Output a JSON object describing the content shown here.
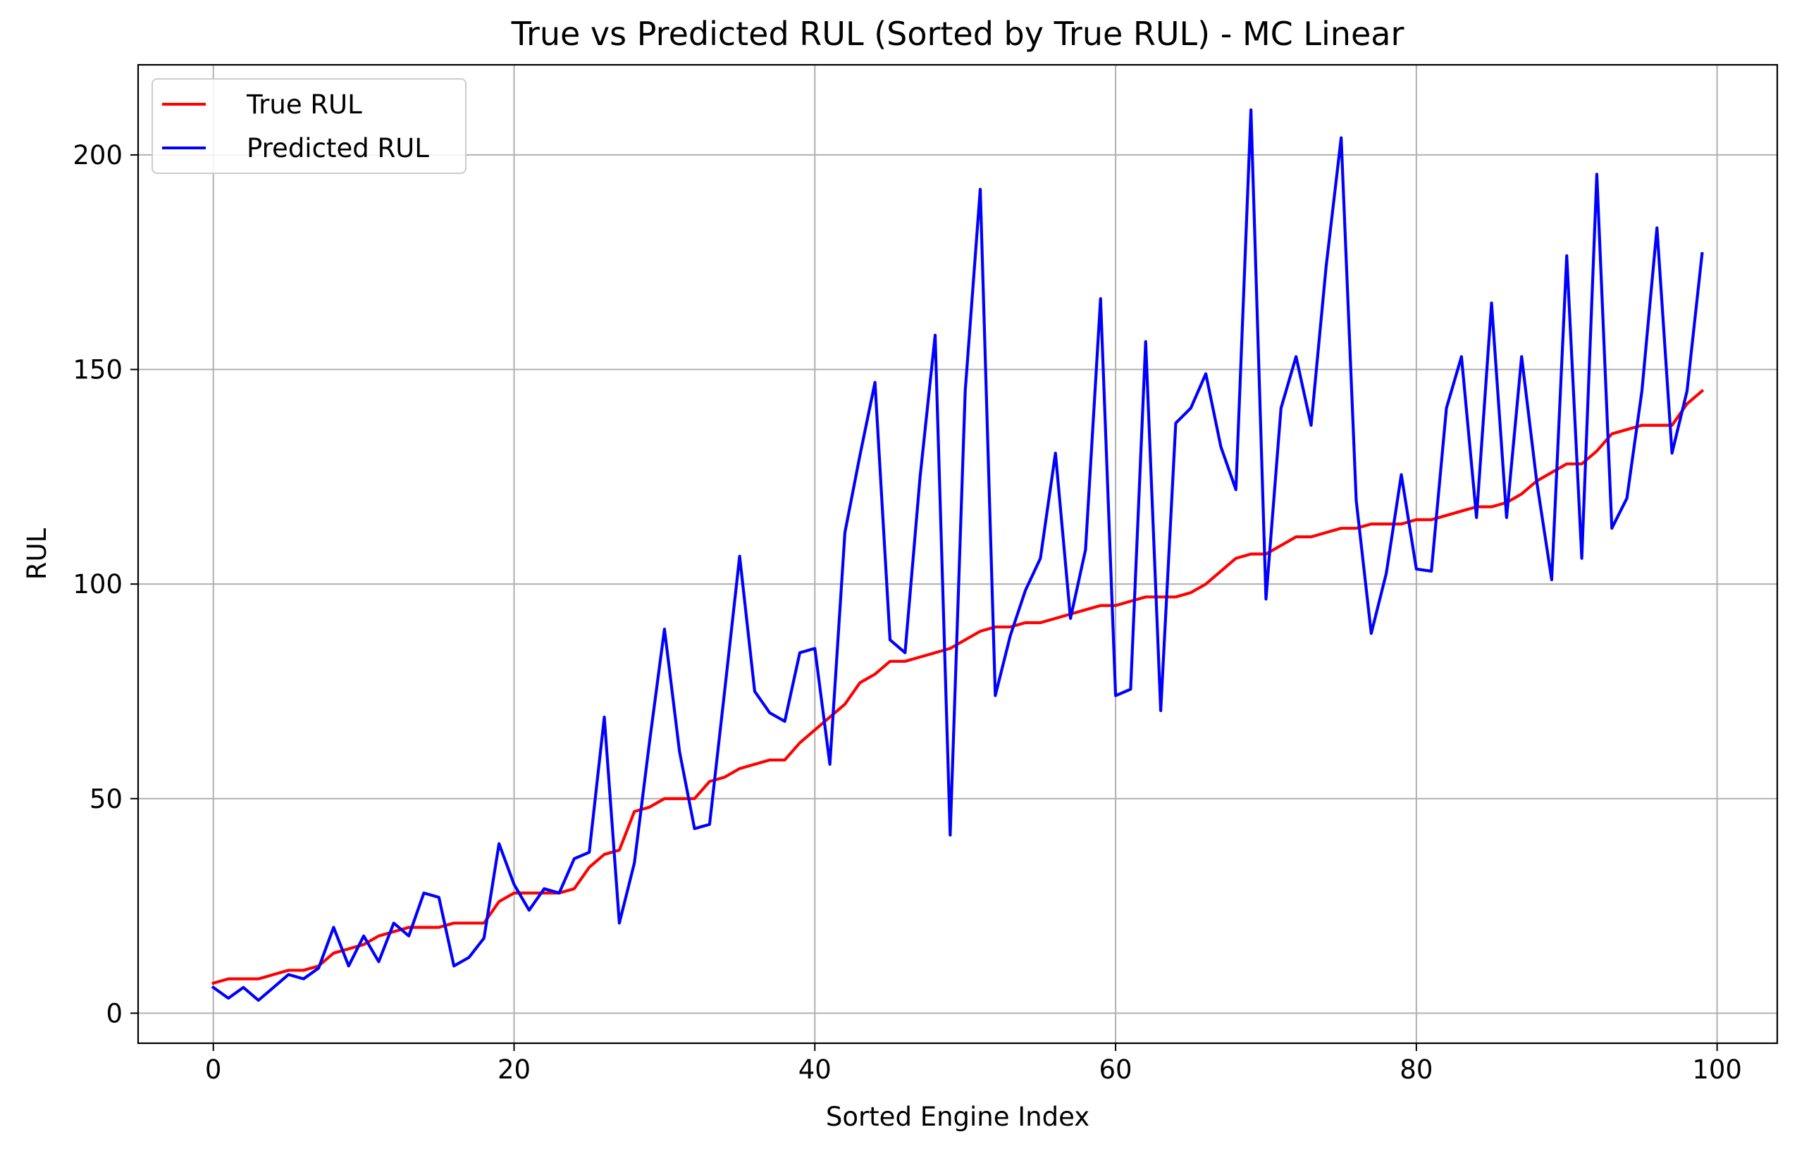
{
  "chart_data": {
    "type": "line",
    "title": "True vs Predicted RUL (Sorted by True RUL) - MC Linear",
    "xlabel": "Sorted Engine Index",
    "ylabel": "RUL",
    "xlim": [
      -5,
      104
    ],
    "ylim": [
      -7,
      221
    ],
    "xticks": [
      0,
      20,
      40,
      60,
      80,
      100
    ],
    "yticks": [
      0,
      50,
      100,
      150,
      200
    ],
    "grid": true,
    "legend_position": "top-left",
    "x": [
      0,
      1,
      2,
      3,
      4,
      5,
      6,
      7,
      8,
      9,
      10,
      11,
      12,
      13,
      14,
      15,
      16,
      17,
      18,
      19,
      20,
      21,
      22,
      23,
      24,
      25,
      26,
      27,
      28,
      29,
      30,
      31,
      32,
      33,
      34,
      35,
      36,
      37,
      38,
      39,
      40,
      41,
      42,
      43,
      44,
      45,
      46,
      47,
      48,
      49,
      50,
      51,
      52,
      53,
      54,
      55,
      56,
      57,
      58,
      59,
      60,
      61,
      62,
      63,
      64,
      65,
      66,
      67,
      68,
      69,
      70,
      71,
      72,
      73,
      74,
      75,
      76,
      77,
      78,
      79,
      80,
      81,
      82,
      83,
      84,
      85,
      86,
      87,
      88,
      89,
      90,
      91,
      92,
      93,
      94,
      95,
      96,
      97,
      98,
      99
    ],
    "series": [
      {
        "name": "True RUL",
        "color": "#ff0000",
        "values": [
          7,
          8,
          8,
          8,
          9,
          10,
          10,
          11,
          14,
          15,
          16,
          18,
          19,
          20,
          20,
          20,
          21,
          21,
          21,
          26,
          28,
          28,
          28,
          28,
          29,
          34,
          37,
          38,
          47,
          48,
          50,
          50,
          50,
          54,
          55,
          57,
          58,
          59,
          59,
          63,
          66,
          69,
          72,
          77,
          79,
          82,
          82,
          83,
          84,
          85,
          87,
          89,
          90,
          90,
          91,
          91,
          92,
          93,
          94,
          95,
          95,
          96,
          97,
          97,
          97,
          98,
          100,
          103,
          106,
          107,
          107,
          109,
          111,
          111,
          112,
          113,
          113,
          114,
          114,
          114,
          115,
          115,
          116,
          117,
          118,
          118,
          119,
          121,
          124,
          126,
          128,
          128,
          131,
          135,
          136,
          137,
          137,
          137,
          142,
          145
        ]
      },
      {
        "name": "Predicted RUL",
        "color": "#0000ff",
        "values": [
          6,
          3.5,
          6,
          3,
          6,
          9,
          8,
          10.5,
          20,
          11,
          18,
          12,
          21,
          18,
          28,
          27,
          11,
          13,
          17.5,
          39.5,
          30,
          24,
          29,
          28,
          36,
          37.5,
          69,
          21,
          35,
          63,
          89.5,
          61,
          43,
          44,
          75,
          106.5,
          75,
          70,
          68,
          84,
          85,
          58,
          112,
          130,
          147,
          87,
          84,
          125,
          158,
          41.5,
          145,
          192,
          74,
          88,
          98.5,
          106,
          130.5,
          92,
          108,
          166.5,
          74,
          75.5,
          156.5,
          70.5,
          137.5,
          141,
          149,
          132,
          122,
          210.5,
          96.5,
          141,
          153,
          137,
          174,
          204,
          119.5,
          88.5,
          102.5,
          125.5,
          103.5,
          103,
          141,
          153,
          115.5,
          165.5,
          115.5,
          153,
          124,
          101,
          176.5,
          106,
          195.5,
          113,
          120,
          145,
          183,
          130.5,
          145,
          177
        ]
      }
    ]
  }
}
